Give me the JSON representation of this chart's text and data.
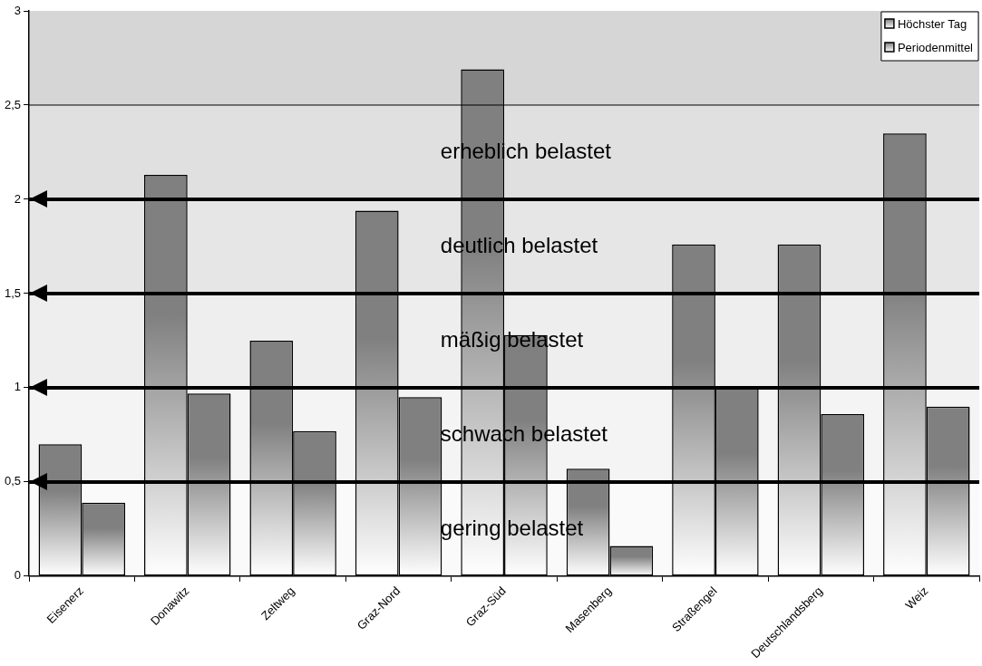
{
  "chart_data": {
    "type": "bar",
    "categories": [
      "Eisenerz",
      "Donawitz",
      "Zeltweg",
      "Graz-Nord",
      "Graz-Süd",
      "Masenberg",
      "Straßengel",
      "Deutschlandsberg",
      "Weiz"
    ],
    "series": [
      {
        "name": "Höchster Tag",
        "color": "#808080",
        "values": [
          0.7,
          2.13,
          1.25,
          1.94,
          2.69,
          0.57,
          1.76,
          1.76,
          2.35
        ]
      },
      {
        "name": "Periodenmittel",
        "color": "#808080",
        "values": [
          0.39,
          0.97,
          0.77,
          0.95,
          1.28,
          0.16,
          1.0,
          0.86,
          0.9
        ]
      }
    ],
    "ylim": [
      0,
      3
    ],
    "yticks": [
      0,
      {
        "value": 0.5,
        "label": "0,5"
      },
      1,
      {
        "value": 1.5,
        "label": "1,5"
      },
      2,
      {
        "value": 2.5,
        "label": "2,5"
      },
      3
    ],
    "grid": false,
    "legend": "top right",
    "ref_lines": [
      {
        "axis": "y",
        "value": 0.5,
        "color": "#000000"
      },
      {
        "axis": "y",
        "value": 1,
        "color": "#000000"
      },
      {
        "axis": "y",
        "value": 1.5,
        "color": "#000000"
      },
      {
        "axis": "y",
        "value": 2,
        "color": "#000000"
      },
      {
        "axis": "y",
        "value": 2.5,
        "color": "#000000",
        "line_style": "solid"
      }
    ],
    "bands": [
      {
        "axis": "y",
        "from": 0,
        "to": 0.5,
        "label": "gering belastet",
        "color": "#fafafa"
      },
      {
        "axis": "y",
        "from": 0.5,
        "to": 1,
        "label": "schwach belastet",
        "color": "#f4f4f4"
      },
      {
        "axis": "y",
        "from": 1,
        "to": 1.5,
        "label": "mäßig belastet",
        "color": "#eeeeee"
      },
      {
        "axis": "y",
        "from": 1.5,
        "to": 2,
        "label": "deutlich belastet",
        "color": "#e6e6e6"
      },
      {
        "axis": "y",
        "from": 2,
        "to": 2.5,
        "label": "erheblich belastet",
        "color": "#e0e0e0"
      }
    ]
  }
}
